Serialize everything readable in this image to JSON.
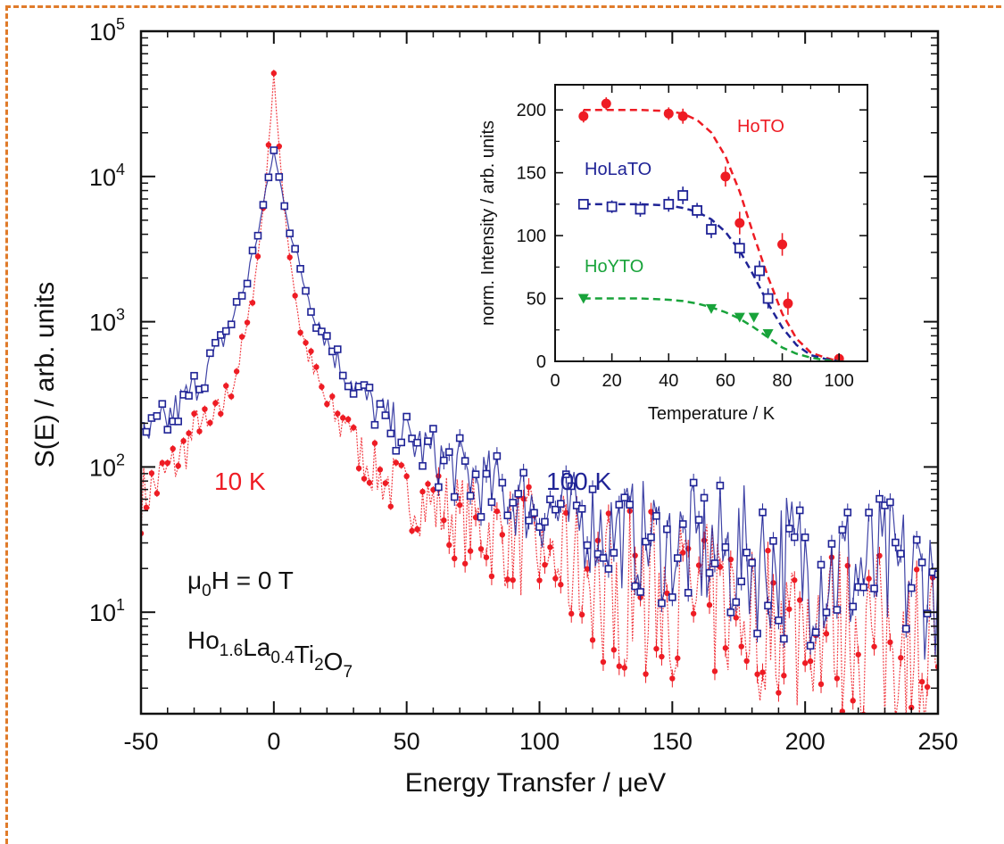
{
  "colors": {
    "red": "#ee1c24",
    "blue": "#1f2396",
    "green": "#18a33a",
    "frame": "#e07b2a",
    "axis": "#111111"
  },
  "chart_data": [
    {
      "type": "line",
      "xlabel": "Energy Transfer / μeV",
      "ylabel": "S(E) / arb. units",
      "scale_y": "log",
      "xlim": [
        -50,
        250
      ],
      "ylim": [
        2,
        100000
      ],
      "xticks": [
        "-50",
        "0",
        "50",
        "100",
        "150",
        "200",
        "250"
      ],
      "yticks": [
        {
          "value": 10,
          "base": "10",
          "exp": "1"
        },
        {
          "value": 100,
          "base": "10",
          "exp": "2"
        },
        {
          "value": 1000,
          "base": "10",
          "exp": "3"
        },
        {
          "value": 10000,
          "base": "10",
          "exp": "4"
        },
        {
          "value": 100000,
          "base": "10",
          "exp": "5"
        }
      ],
      "grid": false,
      "annotations": {
        "field": {
          "pre": "μ",
          "sub": "0",
          "post": "H = 0 T"
        },
        "formula": [
          {
            "t": "Ho",
            "sub": "1.6"
          },
          {
            "t": "La",
            "sub": "0.4"
          },
          {
            "t": "Ti",
            "sub": "2"
          },
          {
            "t": "O",
            "sub": "7"
          }
        ]
      },
      "series": [
        {
          "name": "10 K",
          "color": "#ee1c24",
          "marker": "filled-circle",
          "x": [
            -50,
            -45,
            -40,
            -35,
            -30,
            -28,
            -25,
            -20,
            -15,
            -10,
            -6,
            -3,
            -1,
            0,
            1,
            3,
            6,
            10,
            15,
            20,
            25,
            28,
            30,
            35,
            40,
            50,
            60,
            70,
            80,
            90,
            100,
            110,
            120,
            130,
            140,
            150,
            160,
            170,
            180,
            190,
            200,
            210,
            220,
            230,
            240,
            250
          ],
          "y": [
            60,
            75,
            90,
            120,
            170,
            230,
            170,
            250,
            400,
            900,
            2800,
            9000,
            28000,
            52000,
            28000,
            9000,
            2800,
            900,
            450,
            270,
            190,
            240,
            150,
            110,
            85,
            65,
            55,
            45,
            38,
            32,
            27,
            22,
            19,
            17,
            15,
            14,
            12,
            11,
            10,
            9.5,
            9,
            8.5,
            8,
            7.5,
            7,
            7
          ]
        },
        {
          "name": "100 K",
          "color": "#1f2396",
          "marker": "open-square",
          "x": [
            -50,
            -45,
            -40,
            -35,
            -30,
            -25,
            -20,
            -15,
            -10,
            -6,
            -3,
            -1,
            0,
            1,
            3,
            6,
            10,
            15,
            20,
            25,
            30,
            35,
            40,
            50,
            60,
            70,
            80,
            90,
            100,
            110,
            120,
            130,
            140,
            150,
            160,
            170,
            180,
            190,
            200,
            210,
            220,
            230,
            240,
            250
          ],
          "y": [
            140,
            170,
            210,
            270,
            350,
            480,
            700,
            1100,
            2000,
            4000,
            8000,
            12000,
            15000,
            12000,
            8000,
            4200,
            2200,
            1200,
            750,
            500,
            380,
            290,
            230,
            160,
            120,
            95,
            75,
            62,
            52,
            45,
            40,
            35,
            32,
            29,
            27,
            25,
            23,
            22,
            21,
            20,
            19,
            18,
            17,
            16
          ]
        }
      ]
    },
    {
      "type": "scatter",
      "xlabel": "Temperature / K",
      "ylabel": "norm. Intensity / arb. units",
      "xlim": [
        0,
        110
      ],
      "ylim": [
        0,
        220
      ],
      "xticks": [
        "0",
        "20",
        "40",
        "60",
        "80",
        "100"
      ],
      "yticks": [
        "0",
        "50",
        "100",
        "150",
        "200"
      ],
      "grid": false,
      "series": [
        {
          "name": "HoTO",
          "color": "#ee1c24",
          "marker": "filled-circle",
          "x": [
            10,
            18,
            40,
            45,
            60,
            65,
            80,
            82,
            100
          ],
          "y": [
            195,
            205,
            197,
            195,
            147,
            110,
            93,
            46,
            2
          ],
          "err": [
            5,
            5,
            5,
            6,
            8,
            9,
            9,
            9,
            4
          ],
          "fit_x": [
            10,
            20,
            30,
            40,
            45,
            50,
            55,
            60,
            65,
            70,
            75,
            80,
            85,
            90,
            95,
            100
          ],
          "fit_y": [
            200,
            200,
            200,
            199,
            197,
            192,
            182,
            163,
            135,
            100,
            67,
            38,
            18,
            7,
            3,
            0
          ]
        },
        {
          "name": "HoLaTO",
          "color": "#1f2396",
          "marker": "open-square",
          "x": [
            10,
            20,
            30,
            40,
            45,
            50,
            55,
            65,
            72,
            75
          ],
          "y": [
            125,
            123,
            121,
            125,
            132,
            120,
            105,
            90,
            72,
            50
          ],
          "err": [
            4,
            5,
            6,
            6,
            7,
            6,
            7,
            8,
            8,
            8
          ],
          "fit_x": [
            10,
            20,
            30,
            40,
            45,
            50,
            55,
            60,
            65,
            70,
            75,
            80,
            85,
            90,
            95,
            100
          ],
          "fit_y": [
            125,
            125,
            125,
            124,
            122,
            119,
            113,
            103,
            88,
            68,
            46,
            27,
            13,
            5,
            2,
            0
          ]
        },
        {
          "name": "HoYTO",
          "color": "#18a33a",
          "marker": "filled-triangle-down",
          "x": [
            10,
            55,
            65,
            70,
            75
          ],
          "y": [
            50,
            42,
            35,
            35,
            22
          ],
          "err": [
            2,
            3,
            3,
            3,
            3
          ],
          "fit_x": [
            10,
            20,
            30,
            40,
            45,
            50,
            55,
            60,
            65,
            70,
            75,
            80,
            85,
            90,
            95,
            100
          ],
          "fit_y": [
            50,
            50,
            50,
            49,
            48,
            46,
            43,
            39,
            34,
            27,
            19,
            11,
            6,
            3,
            1,
            0
          ]
        }
      ]
    }
  ]
}
